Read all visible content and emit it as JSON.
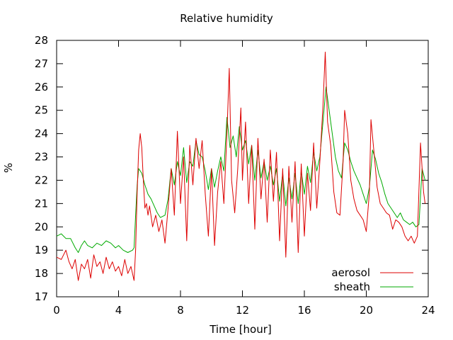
{
  "chart_data": {
    "type": "line",
    "title": "Relative humidity",
    "xlabel": "Time [hour]",
    "ylabel": "%",
    "xlim": [
      0,
      24
    ],
    "ylim": [
      17,
      28
    ],
    "xticks": [
      "0",
      "4",
      "8",
      "12",
      "16",
      "20",
      "24"
    ],
    "yticks": [
      "17",
      "18",
      "19",
      "20",
      "21",
      "22",
      "23",
      "24",
      "25",
      "26",
      "27",
      "28"
    ],
    "legend_position": "bottom-right",
    "grid": false,
    "series": [
      {
        "name": "aerosol",
        "color": "#dd0000",
        "points": [
          [
            0,
            18.7
          ],
          [
            0.3,
            18.6
          ],
          [
            0.6,
            19.0
          ],
          [
            0.8,
            18.5
          ],
          [
            1.0,
            18.2
          ],
          [
            1.2,
            18.6
          ],
          [
            1.4,
            17.7
          ],
          [
            1.6,
            18.4
          ],
          [
            1.8,
            18.2
          ],
          [
            2.0,
            18.6
          ],
          [
            2.2,
            17.8
          ],
          [
            2.4,
            18.8
          ],
          [
            2.6,
            18.3
          ],
          [
            2.8,
            18.5
          ],
          [
            3.0,
            18.0
          ],
          [
            3.2,
            18.7
          ],
          [
            3.4,
            18.2
          ],
          [
            3.6,
            18.5
          ],
          [
            3.8,
            18.1
          ],
          [
            4.0,
            18.3
          ],
          [
            4.2,
            17.9
          ],
          [
            4.4,
            18.6
          ],
          [
            4.6,
            18.0
          ],
          [
            4.8,
            18.3
          ],
          [
            5.0,
            17.7
          ],
          [
            5.1,
            19.0
          ],
          [
            5.2,
            21.5
          ],
          [
            5.3,
            23.3
          ],
          [
            5.4,
            24.0
          ],
          [
            5.5,
            23.4
          ],
          [
            5.6,
            22.0
          ],
          [
            5.7,
            20.8
          ],
          [
            5.8,
            21.0
          ],
          [
            5.9,
            20.5
          ],
          [
            6.0,
            20.9
          ],
          [
            6.2,
            20.0
          ],
          [
            6.4,
            20.5
          ],
          [
            6.6,
            19.8
          ],
          [
            6.8,
            20.3
          ],
          [
            7.0,
            19.3
          ],
          [
            7.2,
            20.8
          ],
          [
            7.4,
            22.5
          ],
          [
            7.6,
            20.5
          ],
          [
            7.8,
            24.1
          ],
          [
            8.0,
            21.0
          ],
          [
            8.2,
            23.0
          ],
          [
            8.4,
            19.4
          ],
          [
            8.6,
            23.5
          ],
          [
            8.8,
            21.8
          ],
          [
            9.0,
            23.8
          ],
          [
            9.2,
            22.5
          ],
          [
            9.4,
            23.7
          ],
          [
            9.6,
            21.4
          ],
          [
            9.8,
            19.6
          ],
          [
            10.0,
            22.5
          ],
          [
            10.2,
            19.2
          ],
          [
            10.4,
            21.5
          ],
          [
            10.6,
            22.8
          ],
          [
            10.8,
            21.0
          ],
          [
            11.0,
            24.0
          ],
          [
            11.15,
            26.8
          ],
          [
            11.3,
            22.0
          ],
          [
            11.5,
            20.6
          ],
          [
            11.7,
            22.5
          ],
          [
            11.9,
            25.1
          ],
          [
            12.0,
            22.0
          ],
          [
            12.2,
            24.5
          ],
          [
            12.4,
            21.0
          ],
          [
            12.6,
            23.5
          ],
          [
            12.8,
            19.9
          ],
          [
            13.0,
            23.8
          ],
          [
            13.2,
            21.2
          ],
          [
            13.4,
            22.9
          ],
          [
            13.6,
            20.2
          ],
          [
            13.8,
            23.3
          ],
          [
            14.0,
            21.1
          ],
          [
            14.2,
            23.2
          ],
          [
            14.4,
            19.4
          ],
          [
            14.6,
            22.5
          ],
          [
            14.8,
            18.7
          ],
          [
            15.0,
            22.6
          ],
          [
            15.2,
            20.2
          ],
          [
            15.4,
            22.8
          ],
          [
            15.6,
            18.9
          ],
          [
            15.8,
            22.7
          ],
          [
            16.0,
            19.6
          ],
          [
            16.2,
            22.3
          ],
          [
            16.4,
            20.7
          ],
          [
            16.6,
            23.6
          ],
          [
            16.8,
            20.8
          ],
          [
            17.0,
            22.8
          ],
          [
            17.2,
            25.2
          ],
          [
            17.35,
            27.5
          ],
          [
            17.5,
            24.5
          ],
          [
            17.7,
            23.5
          ],
          [
            17.9,
            21.5
          ],
          [
            18.1,
            20.6
          ],
          [
            18.3,
            20.5
          ],
          [
            18.5,
            22.8
          ],
          [
            18.6,
            25.0
          ],
          [
            18.8,
            24.0
          ],
          [
            19.0,
            22.0
          ],
          [
            19.2,
            21.2
          ],
          [
            19.4,
            20.7
          ],
          [
            19.6,
            20.5
          ],
          [
            19.8,
            20.3
          ],
          [
            20.0,
            19.8
          ],
          [
            20.2,
            21.5
          ],
          [
            20.3,
            24.6
          ],
          [
            20.5,
            23.2
          ],
          [
            20.7,
            21.7
          ],
          [
            20.9,
            21.0
          ],
          [
            21.1,
            20.8
          ],
          [
            21.3,
            20.6
          ],
          [
            21.5,
            20.5
          ],
          [
            21.7,
            19.9
          ],
          [
            21.9,
            20.3
          ],
          [
            22.1,
            20.2
          ],
          [
            22.3,
            20.0
          ],
          [
            22.5,
            19.6
          ],
          [
            22.7,
            19.4
          ],
          [
            22.9,
            19.6
          ],
          [
            23.1,
            19.3
          ],
          [
            23.3,
            19.6
          ],
          [
            23.5,
            23.6
          ],
          [
            23.7,
            21.5
          ],
          [
            23.8,
            21.0
          ]
        ]
      },
      {
        "name": "sheath",
        "color": "#00aa00",
        "points": [
          [
            0,
            19.6
          ],
          [
            0.3,
            19.7
          ],
          [
            0.6,
            19.5
          ],
          [
            0.9,
            19.5
          ],
          [
            1.2,
            19.1
          ],
          [
            1.4,
            18.9
          ],
          [
            1.6,
            19.2
          ],
          [
            1.8,
            19.4
          ],
          [
            2.0,
            19.2
          ],
          [
            2.3,
            19.1
          ],
          [
            2.6,
            19.3
          ],
          [
            2.9,
            19.2
          ],
          [
            3.2,
            19.4
          ],
          [
            3.5,
            19.3
          ],
          [
            3.8,
            19.1
          ],
          [
            4.0,
            19.2
          ],
          [
            4.3,
            19.0
          ],
          [
            4.6,
            18.9
          ],
          [
            4.9,
            19.0
          ],
          [
            5.0,
            19.1
          ],
          [
            5.1,
            20.5
          ],
          [
            5.2,
            21.8
          ],
          [
            5.3,
            22.5
          ],
          [
            5.5,
            22.3
          ],
          [
            5.7,
            21.8
          ],
          [
            5.9,
            21.4
          ],
          [
            6.1,
            21.2
          ],
          [
            6.3,
            20.9
          ],
          [
            6.5,
            20.6
          ],
          [
            6.7,
            20.4
          ],
          [
            7.0,
            20.5
          ],
          [
            7.2,
            21.2
          ],
          [
            7.4,
            22.5
          ],
          [
            7.6,
            21.8
          ],
          [
            7.8,
            22.8
          ],
          [
            8.0,
            22.2
          ],
          [
            8.2,
            23.4
          ],
          [
            8.4,
            21.9
          ],
          [
            8.6,
            22.8
          ],
          [
            8.8,
            22.6
          ],
          [
            9.0,
            23.7
          ],
          [
            9.2,
            23.1
          ],
          [
            9.4,
            23.0
          ],
          [
            9.6,
            22.4
          ],
          [
            9.8,
            21.6
          ],
          [
            10.0,
            22.5
          ],
          [
            10.2,
            21.7
          ],
          [
            10.4,
            22.4
          ],
          [
            10.6,
            23.0
          ],
          [
            10.8,
            22.4
          ],
          [
            11.0,
            24.7
          ],
          [
            11.2,
            23.4
          ],
          [
            11.4,
            23.9
          ],
          [
            11.6,
            23.0
          ],
          [
            11.8,
            24.3
          ],
          [
            12.0,
            23.3
          ],
          [
            12.2,
            23.7
          ],
          [
            12.4,
            22.7
          ],
          [
            12.6,
            23.5
          ],
          [
            12.8,
            22.0
          ],
          [
            13.0,
            23.3
          ],
          [
            13.2,
            22.1
          ],
          [
            13.4,
            22.8
          ],
          [
            13.6,
            22.0
          ],
          [
            13.8,
            22.6
          ],
          [
            14.0,
            21.8
          ],
          [
            14.2,
            22.5
          ],
          [
            14.4,
            21.1
          ],
          [
            14.6,
            22.3
          ],
          [
            14.8,
            20.9
          ],
          [
            15.0,
            22.1
          ],
          [
            15.2,
            21.2
          ],
          [
            15.4,
            22.3
          ],
          [
            15.6,
            21.0
          ],
          [
            15.8,
            22.4
          ],
          [
            16.0,
            21.4
          ],
          [
            16.2,
            22.6
          ],
          [
            16.4,
            21.9
          ],
          [
            16.6,
            23.2
          ],
          [
            16.8,
            22.4
          ],
          [
            17.0,
            23.0
          ],
          [
            17.2,
            24.5
          ],
          [
            17.4,
            26.0
          ],
          [
            17.6,
            25.0
          ],
          [
            17.8,
            24.0
          ],
          [
            18.0,
            23.0
          ],
          [
            18.2,
            22.4
          ],
          [
            18.4,
            22.1
          ],
          [
            18.6,
            23.6
          ],
          [
            18.8,
            23.3
          ],
          [
            19.0,
            22.8
          ],
          [
            19.2,
            22.4
          ],
          [
            19.4,
            22.1
          ],
          [
            19.6,
            21.8
          ],
          [
            19.8,
            21.4
          ],
          [
            20.0,
            21.0
          ],
          [
            20.2,
            21.7
          ],
          [
            20.4,
            23.3
          ],
          [
            20.6,
            22.9
          ],
          [
            20.8,
            22.3
          ],
          [
            21.0,
            21.9
          ],
          [
            21.2,
            21.4
          ],
          [
            21.4,
            21.0
          ],
          [
            21.6,
            20.8
          ],
          [
            21.8,
            20.6
          ],
          [
            22.0,
            20.4
          ],
          [
            22.2,
            20.6
          ],
          [
            22.4,
            20.3
          ],
          [
            22.6,
            20.2
          ],
          [
            22.8,
            20.1
          ],
          [
            23.0,
            20.2
          ],
          [
            23.2,
            20.0
          ],
          [
            23.4,
            20.1
          ],
          [
            23.6,
            22.5
          ],
          [
            23.8,
            22.0
          ]
        ]
      }
    ]
  }
}
